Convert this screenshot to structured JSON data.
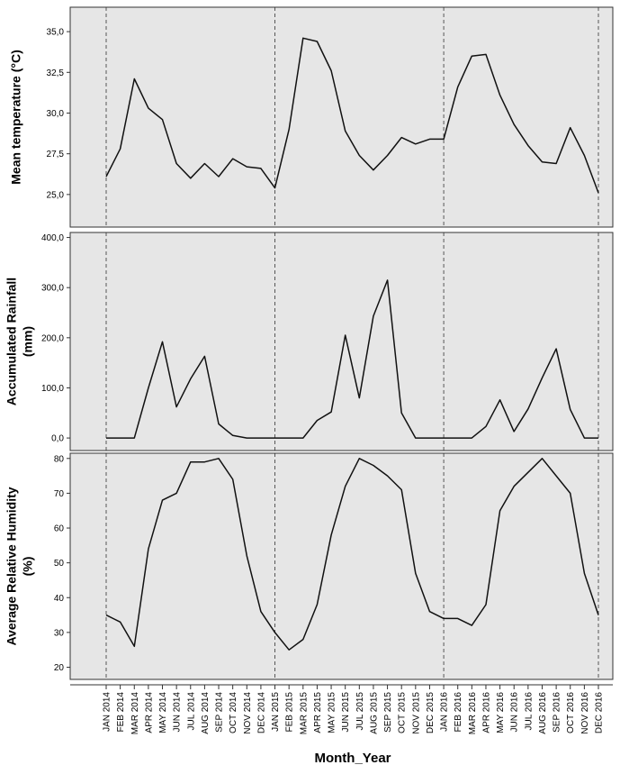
{
  "chart_data": {
    "type": "line",
    "xlabel": "Month_Year",
    "categories": [
      "JAN 2014",
      "FEB 2014",
      "MAR 2014",
      "APR 2014",
      "MAY 2014",
      "JUN 2014",
      "JUL 2014",
      "AUG 2014",
      "SEP 2014",
      "OCT 2014",
      "NOV 2014",
      "DEC 2014",
      "JAN 2015",
      "FEB 2015",
      "MAR 2015",
      "APR 2015",
      "MAY 2015",
      "JUN 2015",
      "JUL 2015",
      "AUG 2015",
      "SEP 2015",
      "OCT 2015",
      "NOV 2015",
      "DEC 2015",
      "JAN 2016",
      "FEB 2016",
      "MAR 2016",
      "APR 2016",
      "MAY 2016",
      "JUN 2016",
      "JUL 2016",
      "AUG 2016",
      "SEP 2016",
      "OCT 2016",
      "NOV 2016",
      "DEC 2016"
    ],
    "reference_lines": [
      "JAN 2014",
      "JAN 2015",
      "JAN 2016",
      "DEC 2016"
    ],
    "panels": [
      {
        "ylabel": [
          "Mean  temperature (°C)"
        ],
        "ylim": [
          23.0,
          36.5
        ],
        "yticks": [
          25.0,
          27.5,
          30.0,
          32.5,
          35.0
        ],
        "ytick_labels": [
          "25,0",
          "27,5",
          "30,0",
          "32,5",
          "35,0"
        ],
        "values": [
          26.1,
          27.8,
          32.1,
          30.3,
          29.6,
          26.9,
          26.0,
          26.9,
          26.1,
          27.2,
          26.7,
          26.6,
          25.4,
          29.0,
          34.6,
          34.4,
          32.6,
          28.9,
          27.4,
          26.5,
          27.4,
          28.5,
          28.1,
          28.4,
          28.4,
          31.6,
          33.5,
          33.6,
          31.1,
          29.3,
          28.0,
          27.0,
          26.9,
          29.1,
          27.4,
          25.1
        ]
      },
      {
        "ylabel": [
          "Accumulated Rainfall",
          "(mm)"
        ],
        "ylim": [
          -25,
          410
        ],
        "yticks": [
          0,
          100,
          200,
          300,
          400
        ],
        "ytick_labels": [
          "0,0",
          "100,0",
          "200,0",
          "300,0",
          "400,0"
        ],
        "values": [
          0,
          0,
          0,
          100,
          192,
          62,
          118,
          163,
          28,
          5,
          0,
          0,
          0,
          0,
          0,
          35,
          52,
          205,
          80,
          243,
          315,
          50,
          0,
          0,
          0,
          0,
          0,
          23,
          76,
          13,
          58,
          120,
          178,
          57,
          0,
          0
        ]
      },
      {
        "ylabel": [
          "Average Relative Humidity",
          "(%)"
        ],
        "ylim": [
          16.5,
          81.5
        ],
        "yticks": [
          20,
          30,
          40,
          50,
          60,
          70,
          80
        ],
        "ytick_labels": [
          "20",
          "30",
          "40",
          "50",
          "60",
          "70",
          "80"
        ],
        "values": [
          35,
          33,
          26,
          54,
          68,
          70,
          79,
          79,
          80,
          74,
          52,
          36,
          30,
          25,
          28,
          38,
          58,
          72,
          80,
          78,
          75,
          71,
          47,
          36,
          34,
          34,
          32,
          38,
          65,
          72,
          76,
          80,
          75,
          70,
          47,
          35
        ]
      }
    ],
    "grid": false,
    "line_color": "#111111",
    "panel_background": "#e6e6e6"
  }
}
